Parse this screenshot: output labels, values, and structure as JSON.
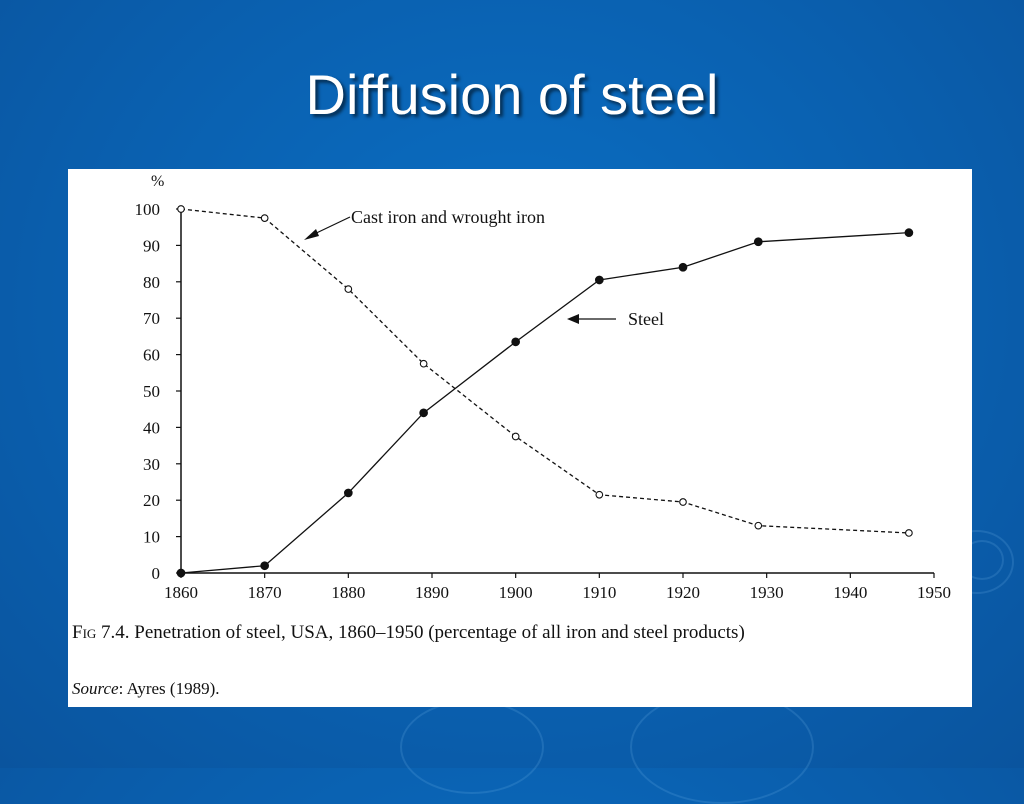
{
  "slide": {
    "title": "Diffusion of steel"
  },
  "caption": {
    "fig_label": "Fig",
    "text": "7.4.  Penetration of steel, USA, 1860–1950 (percentage of all iron and steel products)",
    "source_label": "Source",
    "source_text": ": Ayres (1989)."
  },
  "chart_data": {
    "type": "line",
    "ylabel": "%",
    "xlim": [
      1860,
      1950
    ],
    "ylim": [
      0,
      100
    ],
    "xticks": [
      1860,
      1870,
      1880,
      1890,
      1900,
      1910,
      1920,
      1930,
      1940,
      1950
    ],
    "yticks": [
      0,
      10,
      20,
      30,
      40,
      50,
      60,
      70,
      80,
      90,
      100
    ],
    "xtick_labels": [
      "1860",
      "1870",
      "1880",
      "1890",
      "1900",
      "1910",
      "1920",
      "1930",
      "1940",
      "1950"
    ],
    "ytick_labels": [
      "0",
      "10",
      "20",
      "30",
      "40",
      "50",
      "60",
      "70",
      "80",
      "90",
      "100"
    ],
    "grid": false,
    "series": [
      {
        "name": "Cast iron and wrought iron",
        "style": "dashed",
        "marker": "open-circle",
        "x": [
          1860,
          1870,
          1880,
          1889,
          1900,
          1910,
          1920,
          1929,
          1947
        ],
        "y": [
          100,
          97.5,
          78,
          57.5,
          37.5,
          21.5,
          19.5,
          13,
          11
        ]
      },
      {
        "name": "Steel",
        "style": "solid",
        "marker": "filled-circle",
        "x": [
          1860,
          1870,
          1880,
          1889,
          1900,
          1910,
          1920,
          1929,
          1947
        ],
        "y": [
          0,
          2,
          22,
          44,
          63.5,
          80.5,
          84,
          91,
          93.5
        ]
      }
    ]
  }
}
